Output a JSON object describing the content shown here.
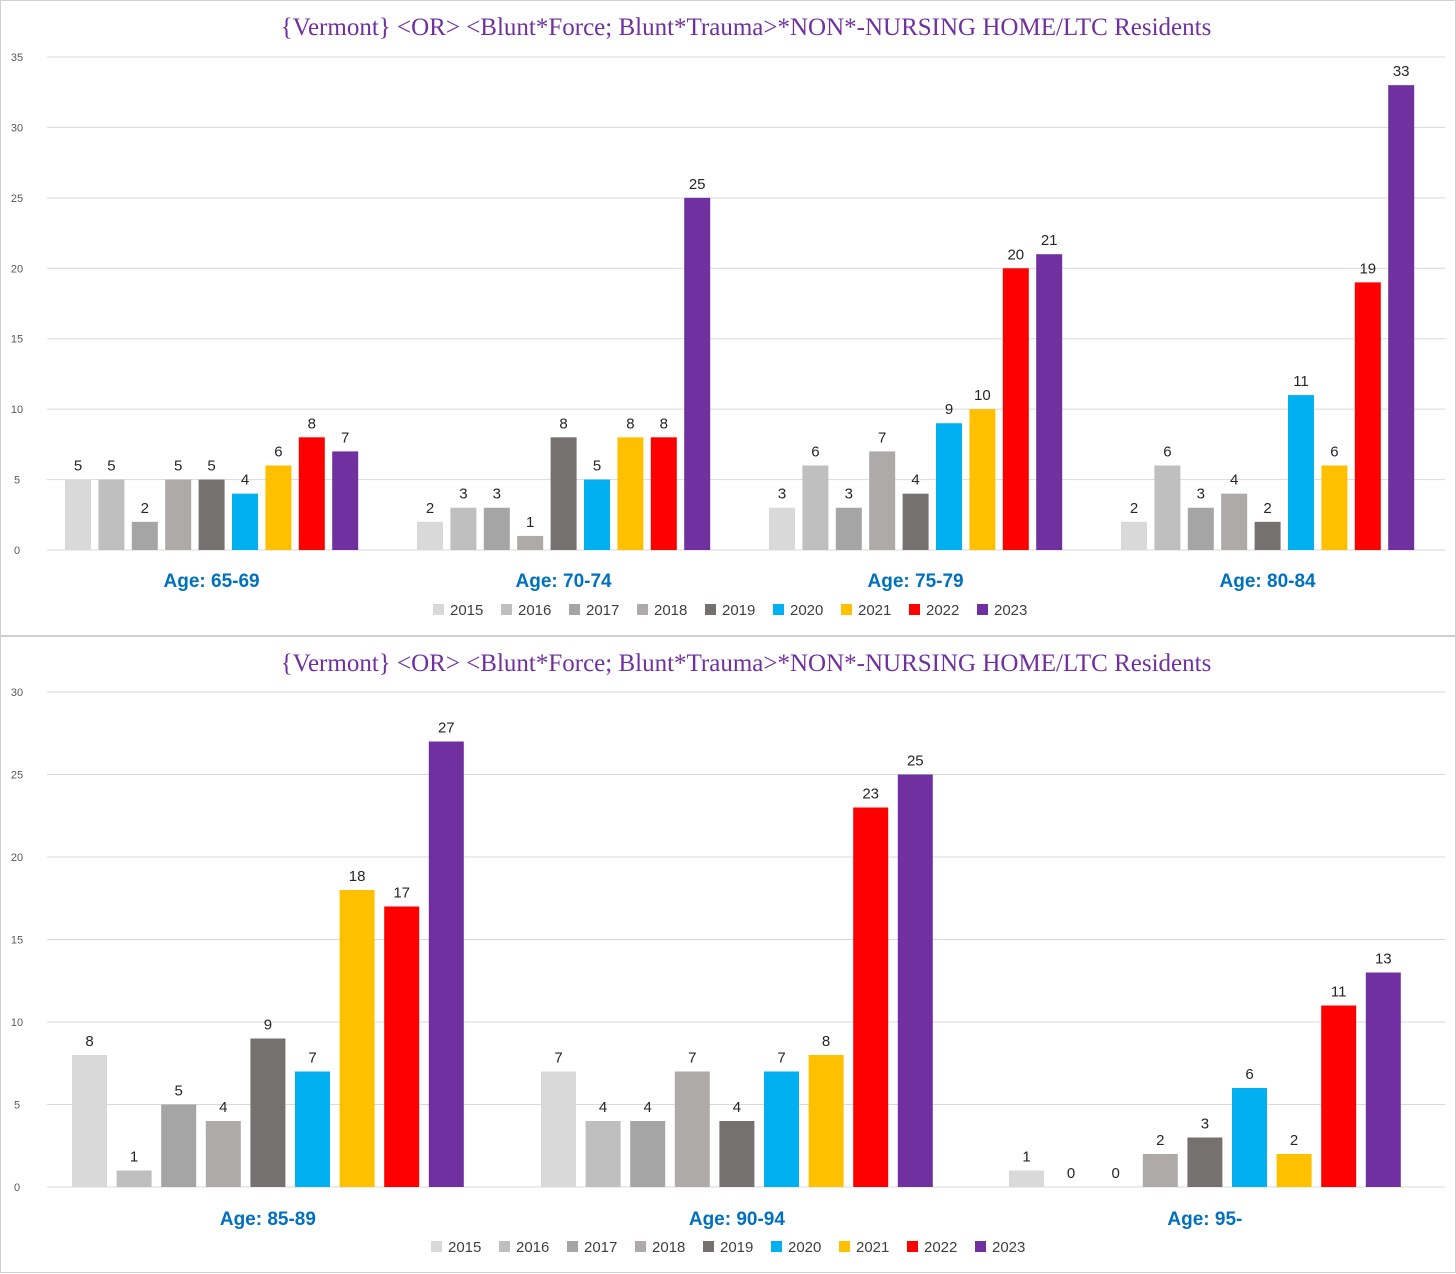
{
  "chart_data": [
    {
      "type": "bar",
      "title": "{Vermont}  <OR> <Blunt*Force; Blunt*Trauma>*NON*-NURSING HOME/LTC Residents",
      "categories": [
        "Age: 65-69",
        "Age: 70-74",
        "Age: 75-79",
        "Age: 80-84"
      ],
      "ylim": [
        0,
        35
      ],
      "yticks": [
        0,
        5,
        10,
        15,
        20,
        25,
        30,
        35
      ],
      "grid": true,
      "legend": "bottom",
      "series": [
        {
          "name": "2015",
          "color": "#d9d9d9",
          "values": [
            5,
            2,
            3,
            2
          ]
        },
        {
          "name": "2016",
          "color": "#bfbfbf",
          "values": [
            5,
            3,
            6,
            6
          ]
        },
        {
          "name": "2017",
          "color": "#a5a5a5",
          "values": [
            2,
            3,
            3,
            3
          ]
        },
        {
          "name": "2018",
          "color": "#aeaaaa",
          "values": [
            5,
            1,
            7,
            4
          ]
        },
        {
          "name": "2019",
          "color": "#767171",
          "values": [
            5,
            8,
            4,
            2
          ]
        },
        {
          "name": "2020",
          "color": "#00b0f0",
          "values": [
            4,
            5,
            9,
            11
          ]
        },
        {
          "name": "2021",
          "color": "#ffc000",
          "values": [
            6,
            8,
            10,
            6
          ]
        },
        {
          "name": "2022",
          "color": "#ff0000",
          "values": [
            8,
            8,
            20,
            19
          ]
        },
        {
          "name": "2023",
          "color": "#7030a0",
          "values": [
            7,
            25,
            21,
            33
          ]
        }
      ]
    },
    {
      "type": "bar",
      "title": "{Vermont}  <OR> <Blunt*Force; Blunt*Trauma>*NON*-NURSING HOME/LTC Residents",
      "categories": [
        "Age: 85-89",
        "Age: 90-94",
        "Age: 95-"
      ],
      "ylim": [
        0,
        30
      ],
      "yticks": [
        0,
        5,
        10,
        15,
        20,
        25,
        30
      ],
      "grid": true,
      "legend": "bottom",
      "series": [
        {
          "name": "2015",
          "color": "#d9d9d9",
          "values": [
            8,
            7,
            1
          ]
        },
        {
          "name": "2016",
          "color": "#bfbfbf",
          "values": [
            1,
            4,
            0
          ]
        },
        {
          "name": "2017",
          "color": "#a5a5a5",
          "values": [
            5,
            4,
            0
          ]
        },
        {
          "name": "2018",
          "color": "#aeaaaa",
          "values": [
            4,
            7,
            2
          ]
        },
        {
          "name": "2019",
          "color": "#767171",
          "values": [
            9,
            4,
            3
          ]
        },
        {
          "name": "2020",
          "color": "#00b0f0",
          "values": [
            7,
            7,
            6
          ]
        },
        {
          "name": "2021",
          "color": "#ffc000",
          "values": [
            18,
            8,
            2
          ]
        },
        {
          "name": "2022",
          "color": "#ff0000",
          "values": [
            17,
            23,
            11
          ]
        },
        {
          "name": "2023",
          "color": "#7030a0",
          "values": [
            27,
            25,
            13
          ]
        }
      ]
    }
  ]
}
